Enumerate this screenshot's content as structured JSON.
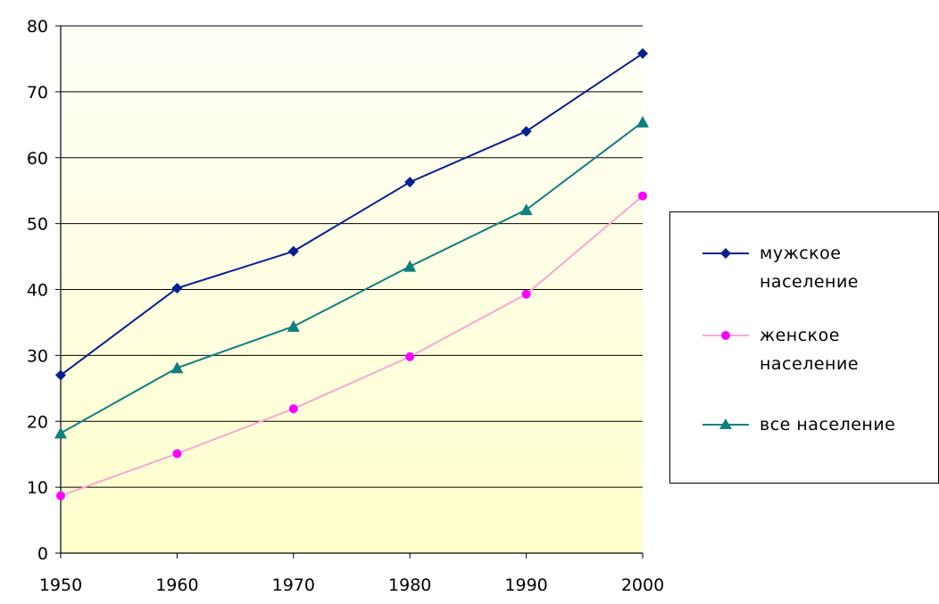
{
  "chart_data": {
    "type": "line",
    "title": "",
    "xlabel": "",
    "ylabel": "",
    "x": [
      1950,
      1960,
      1970,
      1980,
      1990,
      2000
    ],
    "x_tick_labels": [
      "1950",
      "1960",
      "1970",
      "1980",
      "1990",
      "2000"
    ],
    "ylim": [
      0,
      80
    ],
    "y_tick_labels": [
      "0",
      "10",
      "20",
      "30",
      "40",
      "50",
      "60",
      "70",
      "80"
    ],
    "grid": true,
    "legend_position": "right",
    "background": {
      "top": "#fffff8",
      "bottom": "#ffffcc"
    },
    "series": [
      {
        "name": "мужское население",
        "legend_lines": [
          "мужское",
          "население"
        ],
        "color": "#0a1f8f",
        "marker": "diamond",
        "values": [
          27,
          40.2,
          45.8,
          56.3,
          64,
          75.8
        ]
      },
      {
        "name": "женское население",
        "legend_lines": [
          "женское",
          "население"
        ],
        "color": "#ff00ff",
        "line_color": "#f7a8d4",
        "marker": "circle",
        "values": [
          8.7,
          15.1,
          21.9,
          29.8,
          39.3,
          54.2
        ]
      },
      {
        "name": "все население",
        "legend_lines": [
          "все население"
        ],
        "color": "#0f7f7f",
        "marker": "triangle",
        "values": [
          18.2,
          28.1,
          34.4,
          43.5,
          52.1,
          65.4
        ]
      }
    ]
  }
}
